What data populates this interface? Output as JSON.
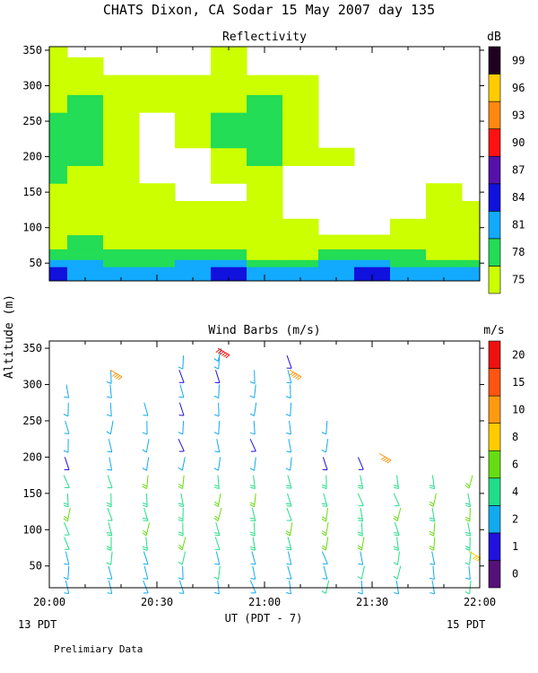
{
  "title": "CHATS Dixon, CA  Sodar  15 May 2007  day 135",
  "footer_left": "13 PDT",
  "footer_right": "15 PDT",
  "footer_note": "Prelimiary Data",
  "chart_data": [
    {
      "type": "heatmap",
      "title": "Reflectivity",
      "ylabel": "Altitude (m)",
      "xlabel": "UT  (PDT - 7)",
      "x_range": [
        "20:00",
        "22:00"
      ],
      "ylim": [
        25,
        355
      ],
      "y_ticks": [
        50,
        100,
        150,
        200,
        250,
        300,
        350
      ],
      "x_ticks": [
        "20:00",
        "20:30",
        "21:00",
        "21:30",
        "22:00"
      ],
      "colorbar": {
        "label": "dB",
        "levels": [
          75,
          78,
          81,
          84,
          87,
          90,
          93,
          96,
          99
        ],
        "colors": [
          "#ccff00",
          "#22dd55",
          "#11aaff",
          "#1111dd",
          "#5511aa",
          "#ff1111",
          "#ff8811",
          "#ffcc00",
          "#220022"
        ]
      },
      "time_minutes": [
        0,
        10,
        20,
        30,
        40,
        50,
        60,
        70,
        80,
        90,
        100,
        110,
        120
      ],
      "altitudes": [
        40,
        50,
        60,
        80,
        100,
        125,
        150,
        175,
        200,
        225,
        250,
        275,
        300,
        330,
        350
      ],
      "class_grid": [
        [
          3,
          2,
          2,
          2,
          2,
          3,
          2,
          2,
          2,
          3,
          2,
          2,
          2
        ],
        [
          2,
          2,
          1,
          1,
          2,
          2,
          1,
          1,
          2,
          2,
          1,
          1,
          1
        ],
        [
          1,
          1,
          1,
          1,
          1,
          1,
          0,
          0,
          1,
          1,
          1,
          0,
          0
        ],
        [
          0,
          1,
          0,
          0,
          0,
          0,
          0,
          0,
          0,
          0,
          0,
          0,
          0
        ],
        [
          0,
          0,
          0,
          0,
          0,
          0,
          0,
          0,
          -1,
          -1,
          0,
          0,
          0
        ],
        [
          0,
          0,
          0,
          0,
          0,
          0,
          0,
          -1,
          -1,
          -1,
          -1,
          0,
          0
        ],
        [
          0,
          0,
          0,
          0,
          -1,
          -1,
          0,
          -1,
          -1,
          -1,
          -1,
          0,
          -1
        ],
        [
          1,
          0,
          0,
          -1,
          -1,
          0,
          0,
          -1,
          -1,
          -1,
          -1,
          -1,
          -1
        ],
        [
          1,
          1,
          0,
          -1,
          -1,
          0,
          1,
          0,
          0,
          -1,
          -1,
          -1,
          -1
        ],
        [
          1,
          1,
          0,
          -1,
          0,
          1,
          1,
          0,
          -1,
          -1,
          -1,
          -1,
          -1
        ],
        [
          1,
          1,
          0,
          -1,
          0,
          1,
          1,
          0,
          -1,
          -1,
          -1,
          -1,
          -1
        ],
        [
          0,
          1,
          0,
          0,
          0,
          0,
          1,
          0,
          -1,
          -1,
          -1,
          -1,
          -1
        ],
        [
          0,
          0,
          0,
          0,
          0,
          0,
          0,
          0,
          -1,
          -1,
          -1,
          -1,
          -1
        ],
        [
          0,
          0,
          -1,
          -1,
          -1,
          0,
          -1,
          -1,
          -1,
          -1,
          -1,
          -1,
          -1
        ],
        [
          0,
          -1,
          -1,
          -1,
          -1,
          0,
          -1,
          -1,
          -1,
          -1,
          -1,
          -1,
          -1
        ]
      ]
    },
    {
      "type": "scatter",
      "title": "Wind Barbs (m/s)",
      "ylabel": "Altitude (m)",
      "xlabel": "UT  (PDT - 7)",
      "x_range": [
        "20:00",
        "22:00"
      ],
      "ylim": [
        20,
        360
      ],
      "y_ticks": [
        50,
        100,
        150,
        200,
        250,
        300,
        350
      ],
      "x_ticks": [
        "20:00",
        "20:30",
        "21:00",
        "21:30",
        "22:00"
      ],
      "colorbar": {
        "label": "m/s",
        "levels": [
          0,
          1,
          2,
          4,
          6,
          8,
          10,
          15,
          20
        ],
        "colors": [
          "#551177",
          "#2211dd",
          "#11aaee",
          "#22dd88",
          "#66dd11",
          "#ffcc00",
          "#ff9911",
          "#ff5511",
          "#ee1111"
        ]
      },
      "barb_times_min": [
        5,
        17,
        27,
        37,
        47,
        57,
        67,
        77,
        87,
        97,
        107,
        117
      ],
      "barb_altitudes": [
        30,
        50,
        70,
        90,
        110,
        130,
        150,
        175,
        200,
        225,
        250,
        275,
        300,
        320,
        340,
        350
      ],
      "top_altitudes": [
        300,
        320,
        290,
        340,
        350,
        330,
        340,
        250,
        210,
        190,
        180,
        190
      ],
      "strong_barbs": [
        {
          "t": 17,
          "alt": 320,
          "speed": 12
        },
        {
          "t": 47,
          "alt": 350,
          "speed": 20
        },
        {
          "t": 67,
          "alt": 320,
          "speed": 14
        },
        {
          "t": 92,
          "alt": 205,
          "speed": 12
        },
        {
          "t": 117,
          "alt": 70,
          "speed": 9
        }
      ]
    }
  ]
}
